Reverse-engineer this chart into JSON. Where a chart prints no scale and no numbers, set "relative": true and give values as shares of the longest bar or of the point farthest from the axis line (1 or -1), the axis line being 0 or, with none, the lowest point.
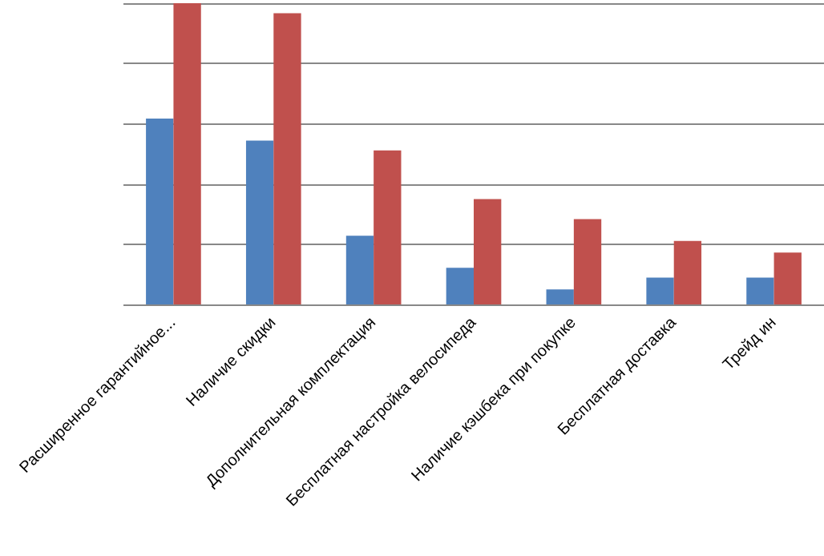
{
  "chart_data": {
    "type": "bar",
    "relative": true,
    "grid": "y",
    "categories": [
      "Расширенное гарантийное...",
      "Наличие скидки",
      "Дополнительная комплектация",
      "Бесплатная настройка велосипеда",
      "Наличие кэшбека при покупке",
      "Бесплатная доставка",
      "Трейд ин"
    ],
    "series": [
      {
        "color": "#4f81bd",
        "values": [
          0.617,
          0.544,
          0.228,
          0.122,
          0.05,
          0.089,
          0.089
        ]
      },
      {
        "color": "#c0504d",
        "values": [
          1,
          0.967,
          0.511,
          0.35,
          0.283,
          0.211,
          0.172
        ]
      }
    ]
  }
}
